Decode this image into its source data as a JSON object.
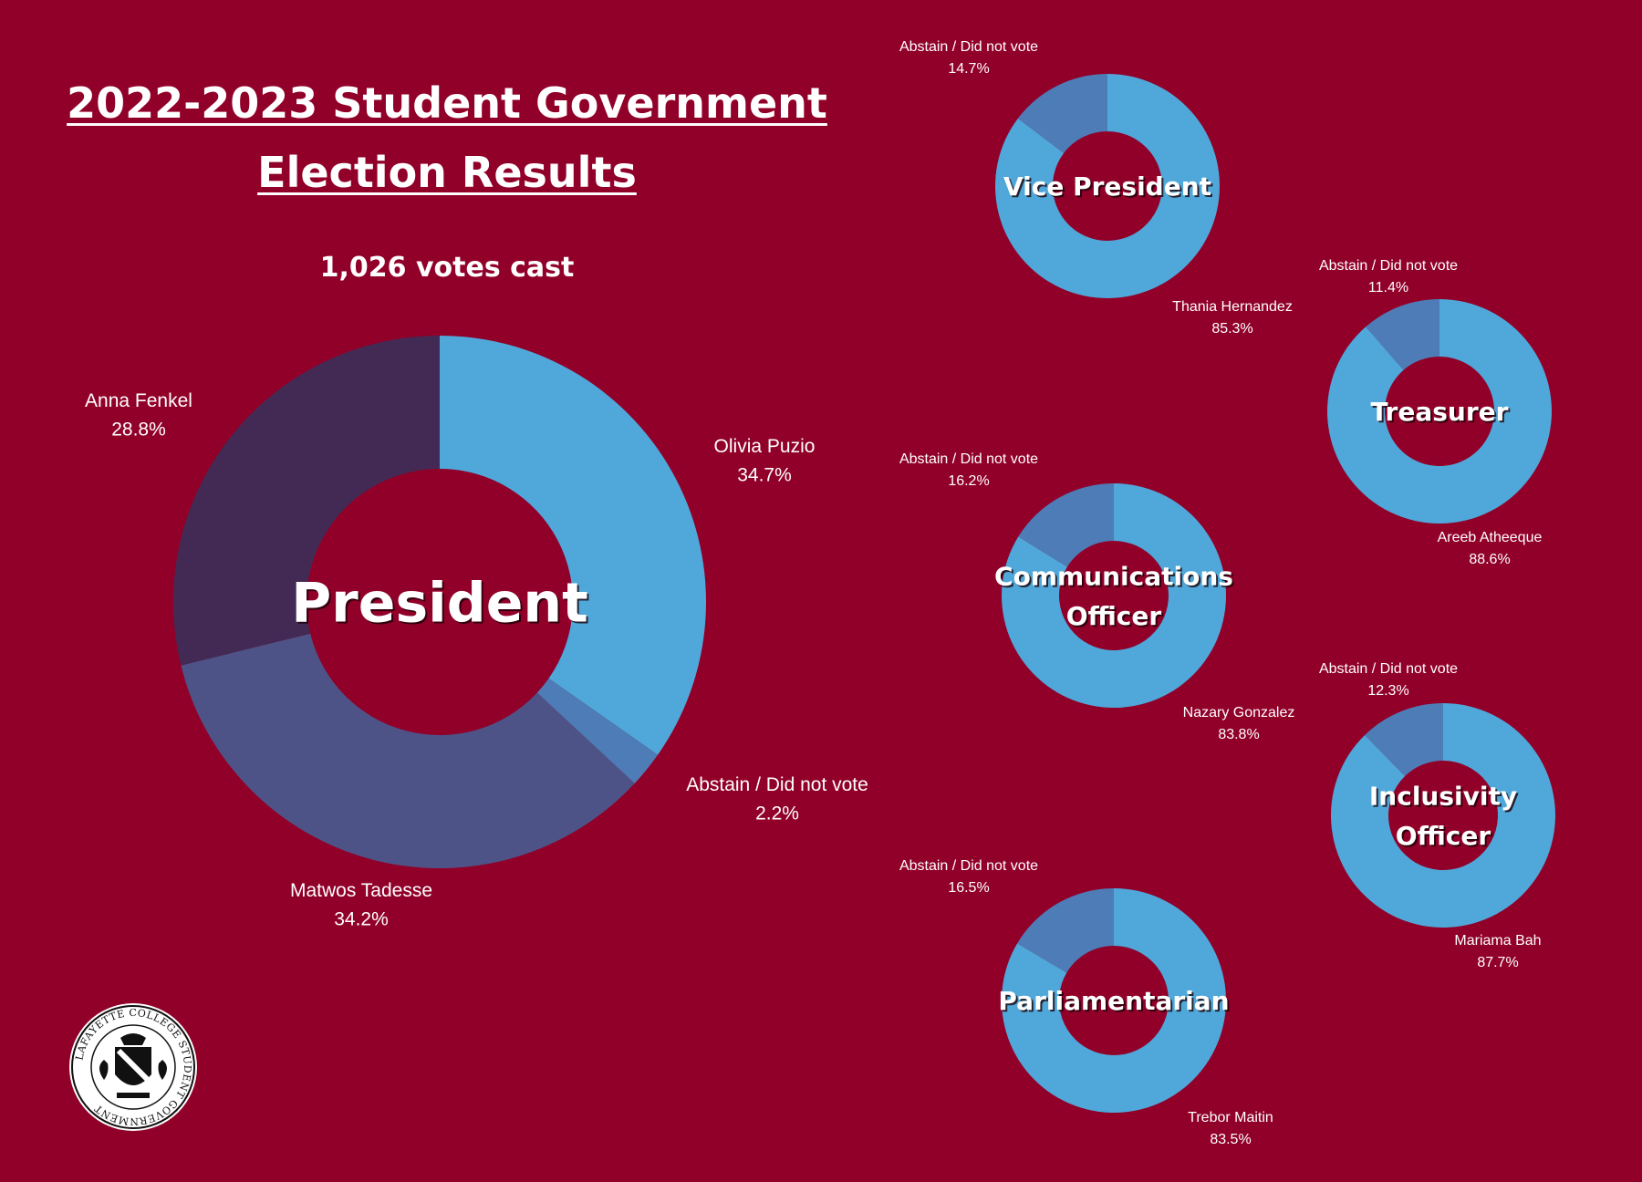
{
  "title": {
    "line1": "2022-2023 Student Government",
    "line2": "Election Results"
  },
  "votes_cast": "1,026 votes cast",
  "seal_text": "LAFAYETTE COLLEGE STUDENT GOVERNMENT",
  "colors": {
    "background": "#910029",
    "light_blue": "#4fa8d9",
    "mid_blue": "#4e7cb7",
    "indigo": "#4e5387",
    "plum": "#432a55"
  },
  "chart_data": [
    {
      "type": "pie",
      "title": "President",
      "center_lines": [
        "President"
      ],
      "slices": [
        {
          "label": "Olivia Puzio",
          "value": 34.7,
          "display": "34.7%",
          "color": "#4fa8d9"
        },
        {
          "label": "Abstain / Did not vote",
          "value": 2.2,
          "display": "2.2%",
          "color": "#4e7cb7"
        },
        {
          "label": "Matwos Tadesse",
          "value": 34.2,
          "display": "34.2%",
          "color": "#4e5387"
        },
        {
          "label": "Anna Fenkel",
          "value": 28.8,
          "display": "28.8%",
          "color": "#432a55"
        }
      ]
    },
    {
      "type": "pie",
      "title": "Vice President",
      "center_lines": [
        "Vice President"
      ],
      "slices": [
        {
          "label": "Thania Hernandez",
          "value": 85.3,
          "display": "85.3%",
          "color": "#4fa8d9"
        },
        {
          "label": "Abstain / Did not vote",
          "value": 14.7,
          "display": "14.7%",
          "color": "#4e7cb7"
        }
      ]
    },
    {
      "type": "pie",
      "title": "Treasurer",
      "center_lines": [
        "Treasurer"
      ],
      "slices": [
        {
          "label": "Areeb Atheeque",
          "value": 88.6,
          "display": "88.6%",
          "color": "#4fa8d9"
        },
        {
          "label": "Abstain / Did not vote",
          "value": 11.4,
          "display": "11.4%",
          "color": "#4e7cb7"
        }
      ]
    },
    {
      "type": "pie",
      "title": "Communications Officer",
      "center_lines": [
        "Communications",
        "Officer"
      ],
      "slices": [
        {
          "label": "Nazary Gonzalez",
          "value": 83.8,
          "display": "83.8%",
          "color": "#4fa8d9"
        },
        {
          "label": "Abstain / Did not vote",
          "value": 16.2,
          "display": "16.2%",
          "color": "#4e7cb7"
        }
      ]
    },
    {
      "type": "pie",
      "title": "Inclusivity Officer",
      "center_lines": [
        "Inclusivity",
        "Officer"
      ],
      "slices": [
        {
          "label": "Mariama Bah",
          "value": 87.7,
          "display": "87.7%",
          "color": "#4fa8d9"
        },
        {
          "label": "Abstain / Did not vote",
          "value": 12.3,
          "display": "12.3%",
          "color": "#4e7cb7"
        }
      ]
    },
    {
      "type": "pie",
      "title": "Parliamentarian",
      "center_lines": [
        "Parliamentarian"
      ],
      "slices": [
        {
          "label": "Trebor Maitin",
          "value": 83.5,
          "display": "83.5%",
          "color": "#4fa8d9"
        },
        {
          "label": "Abstain / Did not vote",
          "value": 16.5,
          "display": "16.5%",
          "color": "#4e7cb7"
        }
      ]
    }
  ]
}
